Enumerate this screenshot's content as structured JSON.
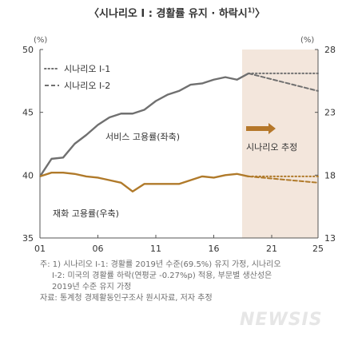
{
  "title": "〈시나리오 Ⅰ : 경활률 유지 · 하락시",
  "title_sup": "1)",
  "chart_data": {
    "type": "line",
    "left_unit": "(%)",
    "right_unit": "(%)",
    "x": [
      2001,
      2002,
      2003,
      2004,
      2005,
      2006,
      2007,
      2008,
      2009,
      2010,
      2011,
      2012,
      2013,
      2014,
      2015,
      2016,
      2017,
      2018,
      2019
    ],
    "x_ticks": [
      2001,
      2006,
      2011,
      2016,
      2021,
      2025
    ],
    "x_tick_labels": [
      "01",
      "06",
      "11",
      "16",
      "21",
      "25"
    ],
    "xlim": [
      2001,
      2025
    ],
    "y_left_lim": [
      35,
      50
    ],
    "y_left_ticks": [
      35,
      40,
      45,
      50
    ],
    "y_right_lim": [
      13,
      28
    ],
    "y_right_ticks": [
      13,
      18,
      23,
      28
    ],
    "projection_start": 2019,
    "series": [
      {
        "axis": "left",
        "values": [
          39.9,
          41.3,
          41.4,
          42.5,
          43.2,
          44.0,
          44.6,
          44.9,
          44.9,
          45.2,
          45.9,
          46.4,
          46.7,
          47.2,
          47.3,
          47.6,
          47.8,
          47.6,
          48.1
        ],
        "label": "서비스 고용률(좌축)"
      },
      {
        "axis": "right",
        "values": [
          17.9,
          18.2,
          18.2,
          18.1,
          17.9,
          17.8,
          17.6,
          17.4,
          16.7,
          17.3,
          17.3,
          17.3,
          17.3,
          17.6,
          17.9,
          17.8,
          18.0,
          18.1,
          17.9
        ],
        "label": "재화 고용률(우축)"
      }
    ],
    "projections": [
      {
        "name": "시나리오 Ⅰ-1",
        "style": "dotted",
        "x": [
          2019,
          2025
        ],
        "services": [
          48.1,
          48.1
        ],
        "goods": [
          17.9,
          17.9
        ]
      },
      {
        "name": "시나리오 Ⅰ-2",
        "style": "dashed",
        "x": [
          2019,
          2025
        ],
        "services": [
          48.1,
          46.7
        ],
        "goods": [
          17.9,
          17.4
        ]
      }
    ],
    "arrow_label": "시나리오 추정",
    "colors": {
      "services": "#707070",
      "goods": "#b07a2a",
      "arrow": "#b5772a",
      "shade": "#f3e6dc",
      "axis": "#555555"
    }
  },
  "notes": [
    "주: 1) 시나리오 Ⅰ-1: 경활률 2019년 수준(69.5%) 유지 가정, 시나리오",
    "Ⅰ-2: 미국의 경활률 하락(연평균 -0.27%p) 적용, 부문별 생산성은",
    "2019년 수준 유지 가정",
    "자료: 통계청 경제활동인구조사 원시자료, 저자 추정"
  ],
  "watermark": "NEWSIS"
}
